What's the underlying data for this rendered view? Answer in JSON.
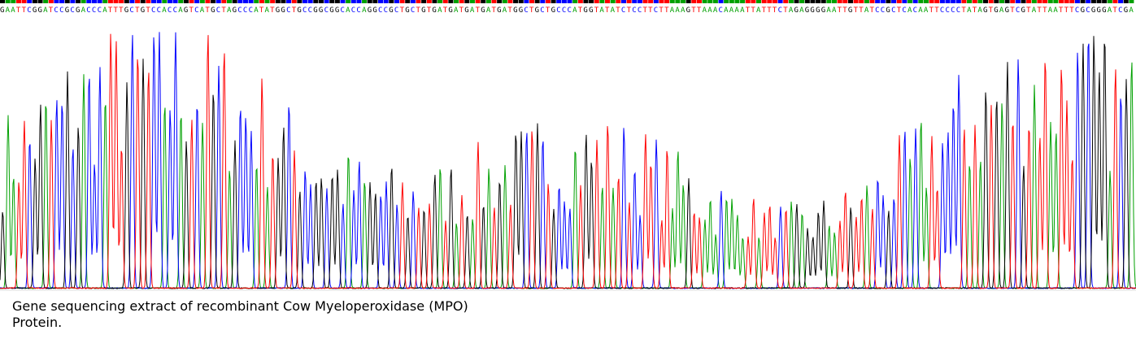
{
  "sequence": "GAATTCGGATCCGCGACCCATTTGCTGTCCACCAGTCATGCTAGCCCATATGGCTGCCGGCGGCACCAGGCCGCTGCTGTGATGATGATGATGATGGCTGCTGCCCATGGTATATCTCCTTCTTAAAGTTAAACAAAATTATTTCTAGAGGGGAATTGTTATCCGCTCACAATTCCCCTATAGTGAGTCGTATTAATTTCGCGGGATCGA",
  "caption": {
    "line1": "Gene sequencing extract of recombinant Cow Myeloperoxidase (MPO)",
    "line2": "Protein."
  }
}
